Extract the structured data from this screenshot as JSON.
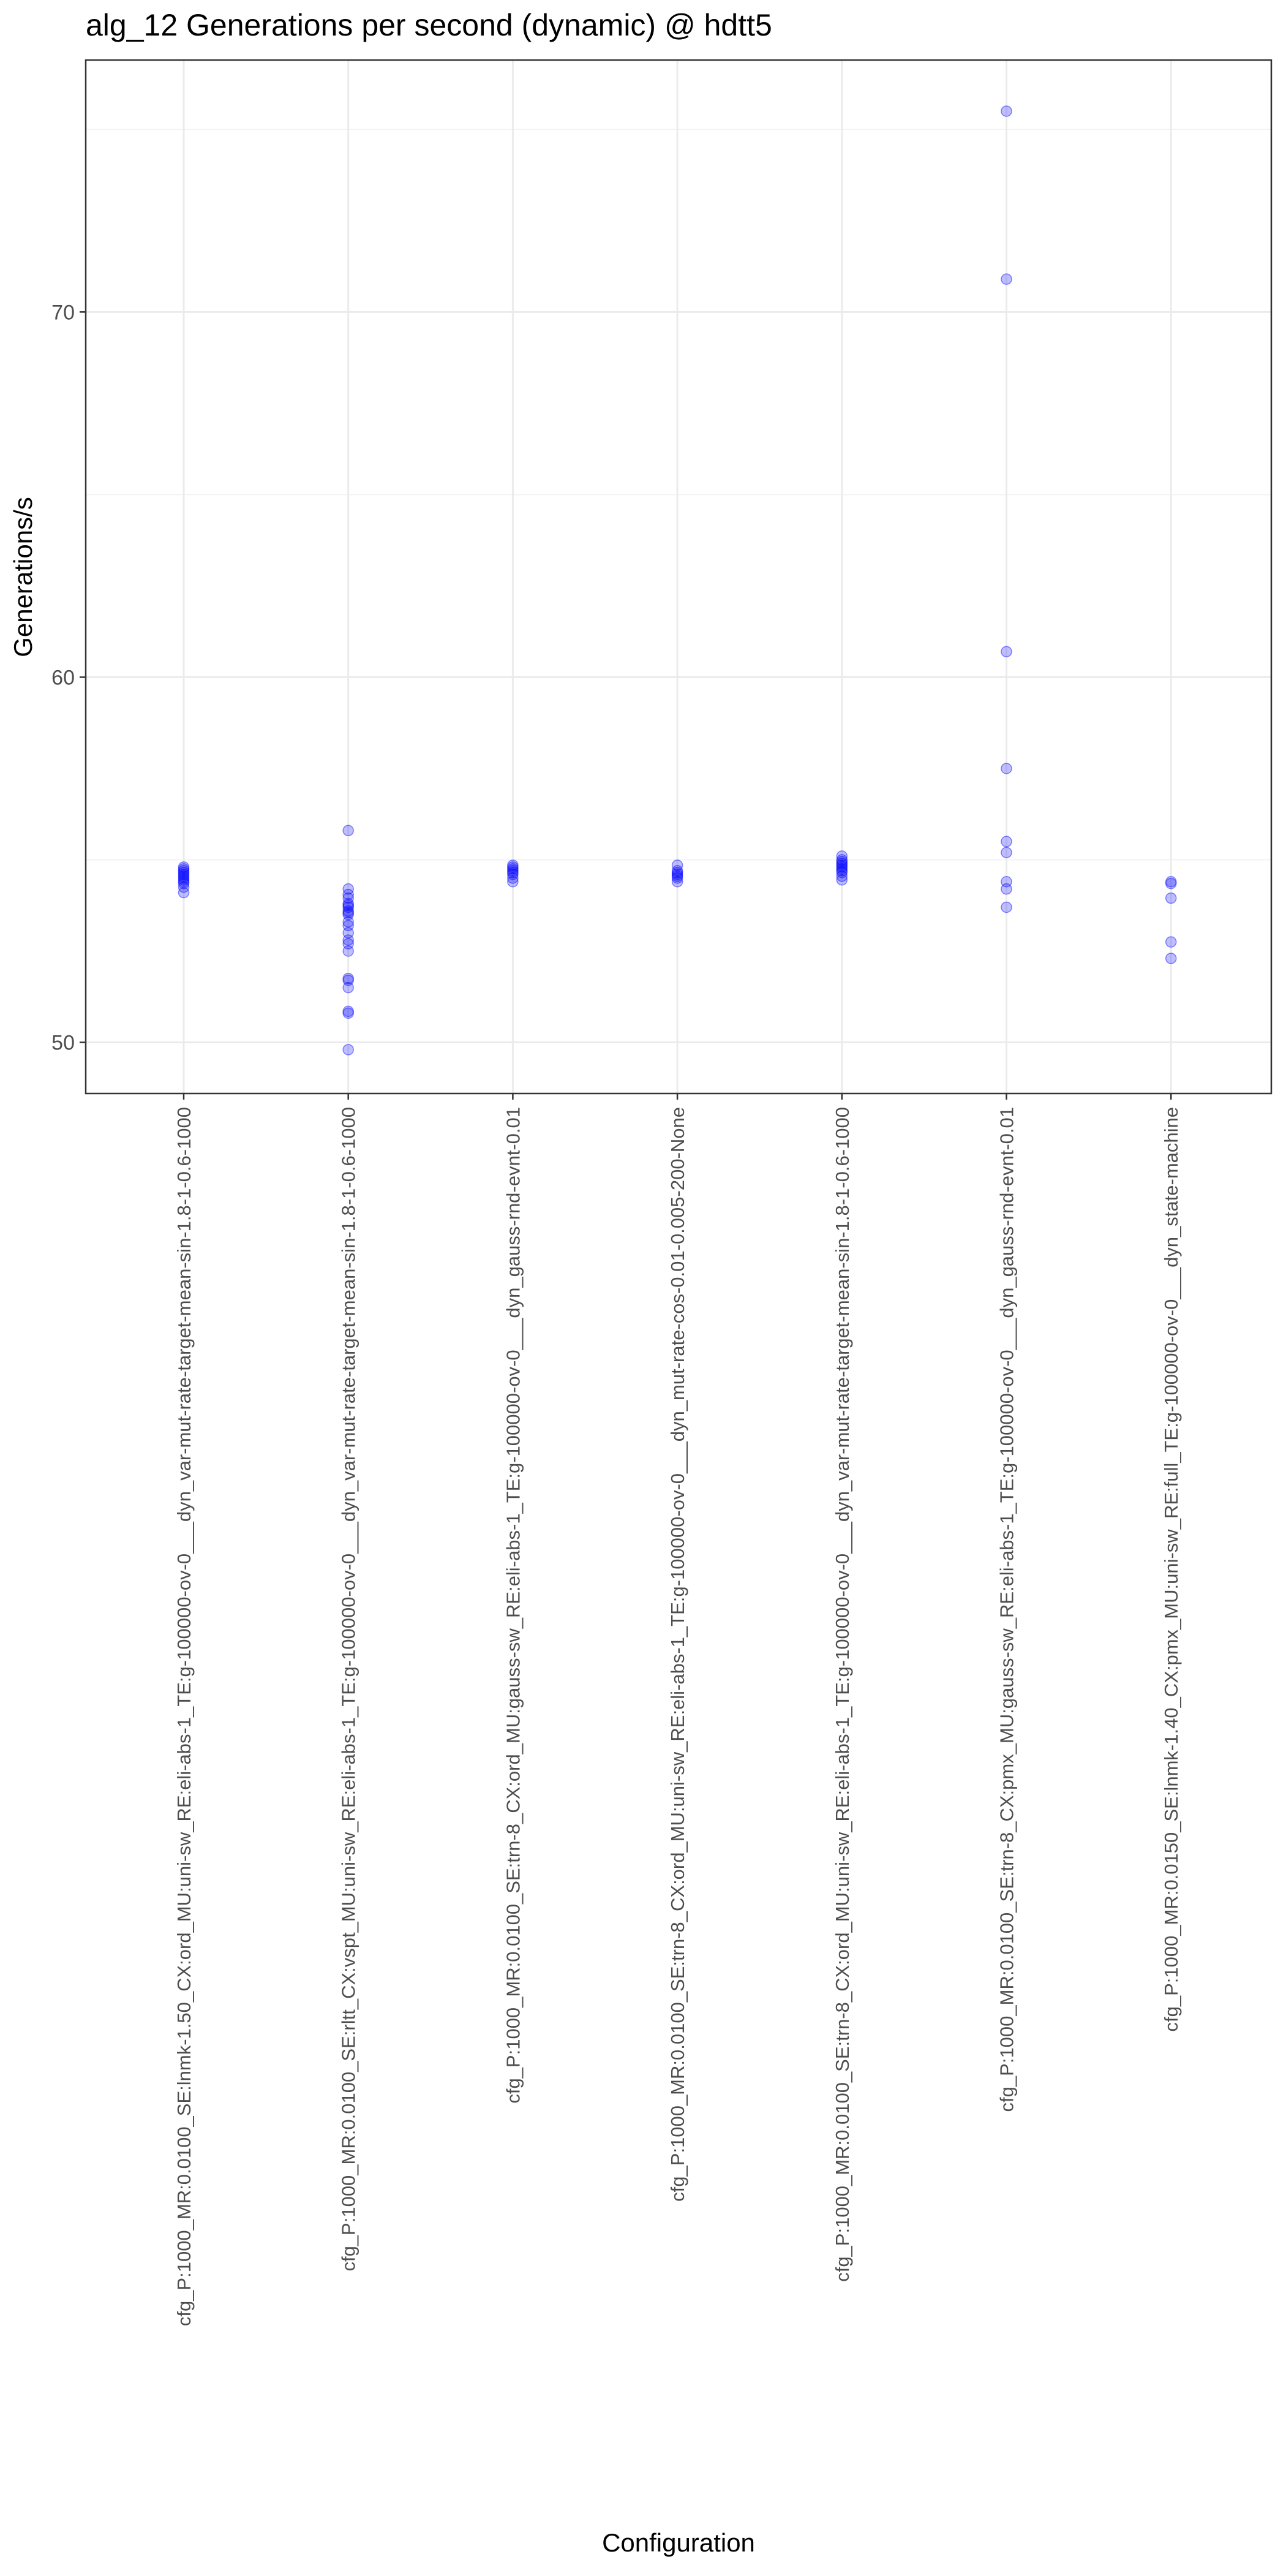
{
  "chart_data": {
    "type": "scatter",
    "title": "alg_12 Generations per second (dynamic) @ hdtt5",
    "xlabel": "Configuration",
    "ylabel": "Generations/s",
    "ylim": [
      48.6,
      76.9
    ],
    "yticks": [
      50,
      60,
      70
    ],
    "grid": true,
    "point_color": "#0000FF",
    "categories": [
      "cfg_P:1000_MR:0.0100_SE:lnmk-1.50_CX:ord_MU:uni-sw_RE:eli-abs-1_TE:g-100000-ov-0___dyn_var-mut-rate-target-mean-sin-1.8-1-0.6-1000",
      "cfg_P:1000_MR:0.0100_SE:rltt_CX:vspt_MU:uni-sw_RE:eli-abs-1_TE:g-100000-ov-0___dyn_var-mut-rate-target-mean-sin-1.8-1-0.6-1000",
      "cfg_P:1000_MR:0.0100_SE:trn-8_CX:ord_MU:gauss-sw_RE:eli-abs-1_TE:g-100000-ov-0___dyn_gauss-rnd-evnt-0.01",
      "cfg_P:1000_MR:0.0100_SE:trn-8_CX:ord_MU:uni-sw_RE:eli-abs-1_TE:g-100000-ov-0___dyn_mut-rate-cos-0.01-0.005-200-None",
      "cfg_P:1000_MR:0.0100_SE:trn-8_CX:ord_MU:uni-sw_RE:eli-abs-1_TE:g-100000-ov-0___dyn_var-mut-rate-target-mean-sin-1.8-1-0.6-1000",
      "cfg_P:1000_MR:0.0100_SE:trn-8_CX:pmx_MU:gauss-sw_RE:eli-abs-1_TE:g-100000-ov-0___dyn_gauss-rnd-evnt-0.01",
      "cfg_P:1000_MR:0.0150_SE:lnmk-1.40_CX:pmx_MU:uni-sw_RE:full_TE:g-100000-ov-0___dyn_state-machine"
    ],
    "series": [
      {
        "values": [
          [
            54.1,
            54.25,
            54.35,
            54.4,
            54.45,
            54.5,
            54.55,
            54.6,
            54.65,
            54.7,
            54.75,
            54.8
          ],
          [
            49.8,
            50.8,
            50.85,
            51.5,
            51.7,
            51.75,
            52.5,
            52.7,
            52.8,
            53.0,
            53.2,
            53.3,
            53.5,
            53.55,
            53.6,
            53.7,
            53.75,
            53.8,
            53.95,
            54.05,
            54.2,
            55.8
          ],
          [
            54.4,
            54.5,
            54.6,
            54.65,
            54.7,
            54.75,
            54.8,
            54.85
          ],
          [
            54.4,
            54.5,
            54.55,
            54.6,
            54.65,
            54.7,
            54.85
          ],
          [
            54.45,
            54.55,
            54.65,
            54.7,
            54.75,
            54.8,
            54.85,
            54.9,
            54.95,
            55.0,
            55.1
          ],
          [
            53.7,
            54.2,
            54.4,
            55.2,
            55.5,
            57.5,
            60.7,
            70.9,
            75.5
          ],
          [
            52.3,
            52.75,
            53.95,
            54.35,
            54.4
          ]
        ]
      }
    ]
  }
}
